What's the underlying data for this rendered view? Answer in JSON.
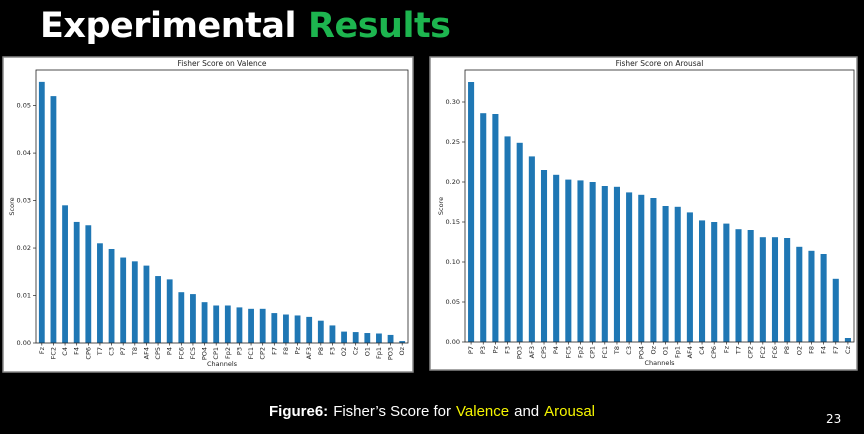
{
  "slide": {
    "title_part1": "Experimental",
    "title_part2": "Results",
    "caption": [
      "Figure6:",
      "Fisher’s Score for",
      "Valence",
      "and",
      "Arousal"
    ],
    "page_number": "23"
  },
  "chart_data": [
    {
      "type": "bar",
      "title": "Fisher Score on Valence",
      "x_label": "Channels",
      "y_label": "Score",
      "color": "#1f77b4",
      "categories": [
        "Fz",
        "FC2",
        "C4",
        "F4",
        "CP6",
        "T7",
        "C3",
        "P7",
        "T8",
        "AF4",
        "CP5",
        "P4",
        "FC6",
        "FC5",
        "PO4",
        "CP1",
        "Fp2",
        "P3",
        "FC1",
        "CP2",
        "F7",
        "F8",
        "Pz",
        "AF3",
        "P8",
        "F3",
        "O2",
        "Cz",
        "O1",
        "Fp1",
        "PO3",
        "Oz"
      ],
      "values": [
        0.055,
        0.052,
        0.029,
        0.0255,
        0.0248,
        0.021,
        0.0198,
        0.018,
        0.0172,
        0.0163,
        0.0141,
        0.0134,
        0.0107,
        0.0103,
        0.0086,
        0.0079,
        0.0079,
        0.0075,
        0.0072,
        0.0072,
        0.0063,
        0.006,
        0.0058,
        0.0055,
        0.0047,
        0.0037,
        0.0024,
        0.0023,
        0.0021,
        0.002,
        0.0017,
        0.0004
      ],
      "ylim": [
        0,
        0.0575
      ],
      "yticks": [
        {
          "value": 0,
          "label": "0.00"
        },
        {
          "value": 0.01,
          "label": "0.01"
        },
        {
          "value": 0.02,
          "label": "0.02"
        },
        {
          "value": 0.03,
          "label": "0.03"
        },
        {
          "value": 0.04,
          "label": "0.04"
        },
        {
          "value": 0.05,
          "label": "0.05"
        }
      ]
    },
    {
      "type": "bar",
      "title": "Fisher Score on Arousal",
      "x_label": "Channels",
      "y_label": "Score",
      "color": "#1f77b4",
      "categories": [
        "P7",
        "P3",
        "Pz",
        "F3",
        "PO3",
        "AF3",
        "CP5",
        "P4",
        "FC5",
        "Fp2",
        "CP1",
        "FC1",
        "T8",
        "C3",
        "PO4",
        "Oz",
        "O1",
        "Fp1",
        "AF4",
        "C4",
        "CP6",
        "Fz",
        "T7",
        "CP2",
        "FC2",
        "FC6",
        "P8",
        "O2",
        "F8",
        "F4",
        "F7",
        "Cz"
      ],
      "values": [
        0.325,
        0.286,
        0.285,
        0.257,
        0.249,
        0.232,
        0.215,
        0.209,
        0.203,
        0.202,
        0.2,
        0.195,
        0.194,
        0.187,
        0.184,
        0.18,
        0.17,
        0.169,
        0.162,
        0.152,
        0.15,
        0.148,
        0.141,
        0.14,
        0.131,
        0.131,
        0.13,
        0.119,
        0.114,
        0.11,
        0.079,
        0.005
      ],
      "ylim": [
        0,
        0.34
      ],
      "yticks": [
        {
          "value": 0,
          "label": "0.00"
        },
        {
          "value": 0.05,
          "label": "0.05"
        },
        {
          "value": 0.1,
          "label": "0.10"
        },
        {
          "value": 0.15,
          "label": "0.15"
        },
        {
          "value": 0.2,
          "label": "0.20"
        },
        {
          "value": 0.25,
          "label": "0.25"
        },
        {
          "value": 0.3,
          "label": "0.30"
        }
      ]
    }
  ]
}
